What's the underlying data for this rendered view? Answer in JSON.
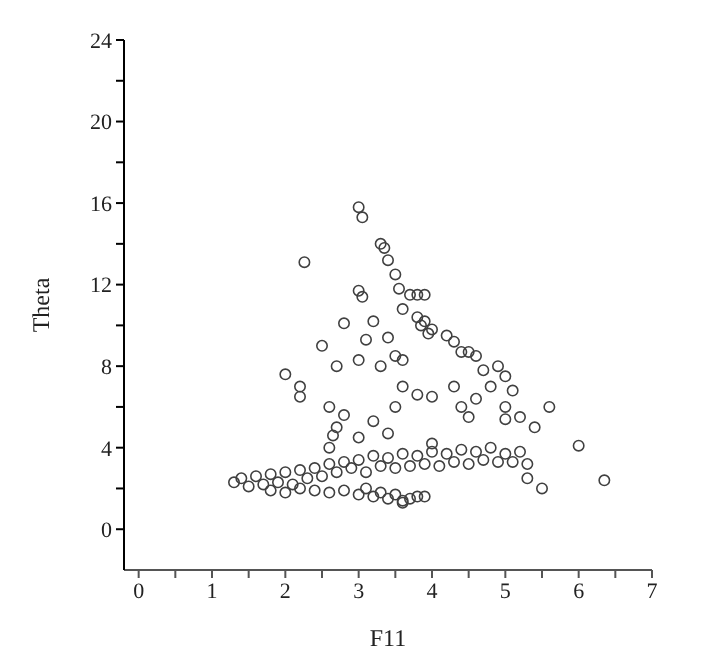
{
  "chart_data": {
    "type": "scatter",
    "xlabel": "F11",
    "ylabel": "Theta",
    "marker": "circle",
    "grid": false,
    "legend": false,
    "xlim": [
      -0.2,
      7
    ],
    "ylim": [
      -2,
      24
    ],
    "xticks": [
      0,
      {
        "value": 0.5,
        "label": null
      },
      1,
      {
        "value": 1.5,
        "label": null
      },
      2,
      {
        "value": 2.5,
        "label": null
      },
      3,
      {
        "value": 3.5,
        "label": null
      },
      4,
      {
        "value": 4.5,
        "label": null
      },
      5,
      {
        "value": 5.5,
        "label": null
      },
      6,
      {
        "value": 6.5,
        "label": null
      },
      7
    ],
    "yticks": [
      0,
      {
        "value": 2,
        "label": null
      },
      4,
      {
        "value": 6,
        "label": null
      },
      8,
      {
        "value": 10,
        "label": null
      },
      12,
      {
        "value": 14,
        "label": null
      },
      16,
      {
        "value": 18,
        "label": null
      },
      20,
      {
        "value": 22,
        "label": null
      },
      24
    ],
    "series": [
      {
        "color": "#404040",
        "x": [
          3.0,
          3.05,
          3.3,
          3.35,
          3.4,
          2.26,
          3.5,
          3.55,
          3.7,
          3.0,
          3.05,
          3.8,
          3.9,
          3.6,
          3.8,
          3.85,
          3.9,
          4.0,
          2.8,
          3.2,
          3.95,
          4.2,
          4.4,
          4.5,
          4.3,
          4.6,
          2.5,
          3.1,
          3.4,
          3.5,
          3.6,
          4.9,
          5.0,
          4.7,
          4.8,
          2.7,
          2.2,
          2.0,
          3.0,
          3.3,
          3.6,
          4.0,
          4.3,
          5.1,
          4.4,
          2.2,
          2.6,
          2.8,
          3.2,
          3.5,
          3.8,
          4.6,
          5.0,
          5.6,
          5.2,
          5.4,
          5.0,
          4.5,
          2.7,
          3.0,
          3.4,
          4.0,
          6.0,
          6.35,
          5.3,
          5.5,
          3.8,
          3.6,
          1.3,
          1.4,
          1.5,
          1.6,
          1.7,
          1.8,
          1.9,
          2.0,
          2.1,
          2.2,
          2.3,
          2.4,
          2.5,
          2.6,
          2.6,
          2.65,
          2.7,
          2.8,
          2.9,
          3.0,
          3.1,
          3.2,
          3.3,
          3.4,
          3.5,
          3.6,
          3.7,
          3.8,
          3.9,
          4.0,
          4.1,
          4.2,
          4.3,
          4.4,
          4.5,
          4.6,
          4.7,
          4.8,
          4.9,
          5.0,
          5.1,
          5.2,
          5.3,
          1.8,
          2.0,
          2.2,
          2.4,
          2.6,
          2.8,
          3.0,
          3.1,
          3.2,
          3.3,
          3.4,
          3.5,
          3.6,
          3.7,
          3.9
        ],
        "values": [
          15.8,
          15.3,
          14,
          13.8,
          13.2,
          13.1,
          12.5,
          11.8,
          11.5,
          11.7,
          11.4,
          11.5,
          11.5,
          10.8,
          10.4,
          10.0,
          10.2,
          9.8,
          10.1,
          10.2,
          9.6,
          9.5,
          8.7,
          8.7,
          9.2,
          8.5,
          9.0,
          9.3,
          9.4,
          8.5,
          8.3,
          8.0,
          7.5,
          7.8,
          7.0,
          8.0,
          7.0,
          7.6,
          8.3,
          8.0,
          7.0,
          6.5,
          7.0,
          6.8,
          6.0,
          6.5,
          6.0,
          5.6,
          5.3,
          6.0,
          6.6,
          6.4,
          6.0,
          6.0,
          5.5,
          5.0,
          5.4,
          5.5,
          5.0,
          4.5,
          4.7,
          4.2,
          4.1,
          2.4,
          2.5,
          2.0,
          1.6,
          1.3,
          2.3,
          2.5,
          2.1,
          2.6,
          2.2,
          2.7,
          2.3,
          2.8,
          2.2,
          2.9,
          2.5,
          3.0,
          2.6,
          3.2,
          4.0,
          4.6,
          2.8,
          3.3,
          3.0,
          3.4,
          2.8,
          3.6,
          3.1,
          3.5,
          3.0,
          3.7,
          3.1,
          3.6,
          3.2,
          3.8,
          3.1,
          3.7,
          3.3,
          3.9,
          3.2,
          3.8,
          3.4,
          4.0,
          3.3,
          3.7,
          3.3,
          3.8,
          3.2,
          1.9,
          1.8,
          2.0,
          1.9,
          1.8,
          1.9,
          1.7,
          2.0,
          1.6,
          1.8,
          1.5,
          1.7,
          1.4,
          1.5,
          1.6
        ]
      }
    ]
  }
}
